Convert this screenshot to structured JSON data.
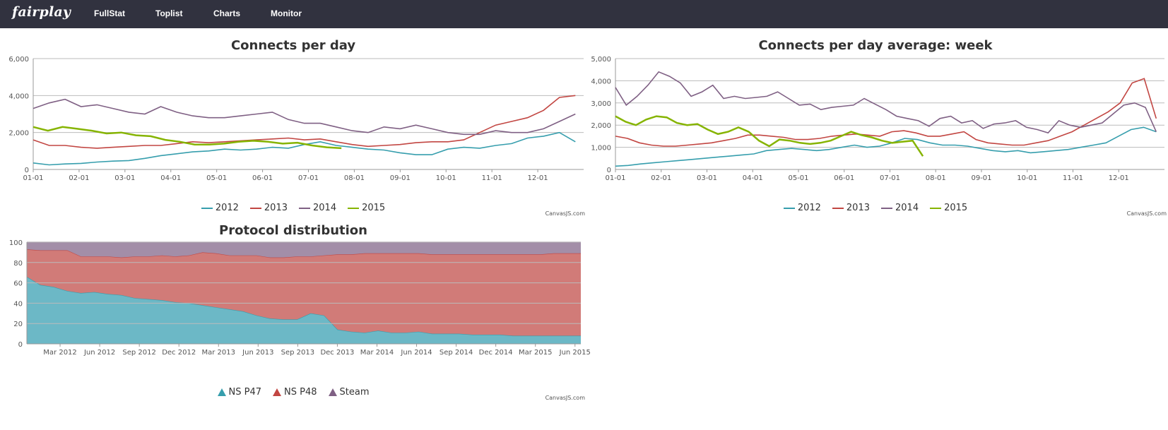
{
  "nav": {
    "brand": "fairplay",
    "items": [
      {
        "label": "FullStat"
      },
      {
        "label": "Toplist"
      },
      {
        "label": "Charts"
      },
      {
        "label": "Monitor"
      }
    ]
  },
  "colors": {
    "navbar": "#31323f",
    "s2012": "#369ead",
    "s2013": "#c24642",
    "s2014": "#7f6084",
    "s2015": "#86b402",
    "ns47": "#6cb8c6",
    "ns48": "#d17b78",
    "steam": "#a38ea8"
  },
  "credit": "CanvasJS.com",
  "chart_data": [
    {
      "type": "line",
      "title": "Connects per day",
      "xlabel": "",
      "ylabel": "",
      "ylim": [
        0,
        6000
      ],
      "yticks": [
        "0",
        "2,000",
        "4,000",
        "6,000"
      ],
      "xticks": [
        "01-01",
        "02-01",
        "03-01",
        "04-01",
        "05-01",
        "06-01",
        "07-01",
        "08-01",
        "09-01",
        "10-01",
        "11-01",
        "12-01"
      ],
      "legend_position": "bottom",
      "series": [
        {
          "name": "2012",
          "values": [
            350,
            250,
            300,
            330,
            400,
            450,
            480,
            600,
            750,
            850,
            950,
            1000,
            1100,
            1050,
            1100,
            1200,
            1150,
            1350,
            1500,
            1300,
            1200,
            1100,
            1050,
            900,
            800,
            800,
            1100,
            1200,
            1150,
            1300,
            1400,
            1700,
            1800,
            2000,
            1500
          ]
        },
        {
          "name": "2013",
          "values": [
            1600,
            1300,
            1300,
            1200,
            1150,
            1200,
            1250,
            1300,
            1300,
            1400,
            1500,
            1450,
            1500,
            1550,
            1600,
            1650,
            1700,
            1600,
            1650,
            1500,
            1350,
            1250,
            1300,
            1350,
            1450,
            1500,
            1500,
            1600,
            2000,
            2400,
            2600,
            2800,
            3200,
            3900,
            4000
          ]
        },
        {
          "name": "2014",
          "values": [
            3300,
            3600,
            3800,
            3400,
            3500,
            3300,
            3100,
            3000,
            3400,
            3100,
            2900,
            2800,
            2800,
            2900,
            3000,
            3100,
            2700,
            2500,
            2500,
            2300,
            2100,
            2000,
            2300,
            2200,
            2400,
            2200,
            2000,
            1900,
            1900,
            2100,
            2000,
            2000,
            2200,
            2600,
            3000
          ]
        },
        {
          "name": "2015",
          "values": [
            2300,
            2100,
            2300,
            2200,
            2100,
            1950,
            2000,
            1850,
            1800,
            1600,
            1500,
            1350,
            1350,
            1400,
            1500,
            1550,
            1500,
            1400,
            1450,
            1300,
            1200,
            1150
          ]
        }
      ]
    },
    {
      "type": "line",
      "title": "Connects per day average: week",
      "xlabel": "",
      "ylabel": "",
      "ylim": [
        0,
        5000
      ],
      "yticks": [
        "0",
        "1,000",
        "2,000",
        "3,000",
        "4,000",
        "5,000"
      ],
      "xticks": [
        "01-01",
        "02-01",
        "03-01",
        "04-01",
        "05-01",
        "06-01",
        "07-01",
        "08-01",
        "09-01",
        "10-01",
        "11-01",
        "12-01"
      ],
      "legend_position": "bottom",
      "series": [
        {
          "name": "2012",
          "values": [
            150,
            180,
            250,
            300,
            350,
            400,
            450,
            500,
            550,
            600,
            650,
            700,
            850,
            900,
            950,
            900,
            850,
            900,
            1000,
            1100,
            1000,
            1050,
            1200,
            1400,
            1350,
            1200,
            1100,
            1100,
            1050,
            950,
            850,
            800,
            850,
            750,
            800,
            850,
            900,
            1000,
            1100,
            1200,
            1500,
            1800,
            1900,
            1700
          ]
        },
        {
          "name": "2013",
          "values": [
            1500,
            1400,
            1200,
            1100,
            1050,
            1050,
            1100,
            1150,
            1200,
            1300,
            1400,
            1550,
            1550,
            1500,
            1450,
            1350,
            1350,
            1400,
            1500,
            1550,
            1600,
            1550,
            1500,
            1700,
            1750,
            1650,
            1500,
            1500,
            1600,
            1700,
            1350,
            1200,
            1150,
            1100,
            1100,
            1200,
            1300,
            1500,
            1700,
            2000,
            2300,
            2600,
            3000,
            3900,
            4100,
            2300
          ]
        },
        {
          "name": "2014",
          "values": [
            3700,
            2900,
            3300,
            3800,
            4400,
            4200,
            3900,
            3300,
            3500,
            3800,
            3200,
            3300,
            3200,
            3250,
            3300,
            3500,
            3200,
            2900,
            2950,
            2700,
            2800,
            2850,
            2900,
            3200,
            2950,
            2700,
            2400,
            2300,
            2200,
            1950,
            2300,
            2400,
            2100,
            2200,
            1850,
            2050,
            2100,
            2200,
            1900,
            1800,
            1650,
            2200,
            2000,
            1900,
            2000,
            2100,
            2500,
            2900,
            3000,
            2800,
            1700
          ]
        },
        {
          "name": "2015",
          "values": [
            2400,
            2150,
            2000,
            2250,
            2400,
            2350,
            2100,
            2000,
            2050,
            1800,
            1600,
            1700,
            1900,
            1700,
            1300,
            1050,
            1350,
            1300,
            1200,
            1150,
            1200,
            1300,
            1500,
            1700,
            1550,
            1450,
            1300,
            1200,
            1250,
            1300,
            600
          ]
        }
      ]
    },
    {
      "type": "area",
      "title": "Protocol distribution",
      "stacked": "100%",
      "xlabel": "",
      "ylabel": "",
      "ylim": [
        0,
        100
      ],
      "yticks": [
        "0",
        "20",
        "40",
        "60",
        "80",
        "100"
      ],
      "xticks": [
        "Mar 2012",
        "Jun 2012",
        "Sep 2012",
        "Dec 2012",
        "Mar 2013",
        "Jun 2013",
        "Sep 2013",
        "Dec 2013",
        "Mar 2014",
        "Jun 2014",
        "Sep 2014",
        "Dec 2014",
        "Mar 2015",
        "Jun 2015"
      ],
      "legend_position": "bottom",
      "series": [
        {
          "name": "NS P47",
          "values": [
            66,
            58,
            56,
            52,
            50,
            51,
            49,
            48,
            45,
            44,
            43,
            41,
            40,
            38,
            36,
            34,
            32,
            28,
            25,
            24,
            24,
            30,
            28,
            14,
            12,
            11,
            13,
            11,
            11,
            12,
            10,
            10,
            10,
            9,
            9,
            9,
            8,
            8,
            8,
            8,
            8,
            8
          ]
        },
        {
          "name": "NS P48",
          "values": [
            27,
            34,
            36,
            40,
            36,
            35,
            37,
            37,
            41,
            42,
            44,
            45,
            47,
            52,
            53,
            53,
            55,
            59,
            60,
            61,
            62,
            56,
            59,
            74,
            76,
            78,
            76,
            78,
            78,
            77,
            78,
            78,
            78,
            79,
            79,
            79,
            80,
            80,
            80,
            81,
            81,
            81
          ]
        },
        {
          "name": "Steam",
          "values": [
            7,
            8,
            8,
            8,
            14,
            14,
            14,
            15,
            14,
            14,
            13,
            14,
            13,
            10,
            11,
            13,
            13,
            13,
            15,
            15,
            14,
            14,
            13,
            12,
            12,
            11,
            11,
            11,
            11,
            11,
            12,
            12,
            12,
            12,
            12,
            12,
            12,
            12,
            12,
            11,
            11,
            11
          ]
        }
      ]
    }
  ]
}
